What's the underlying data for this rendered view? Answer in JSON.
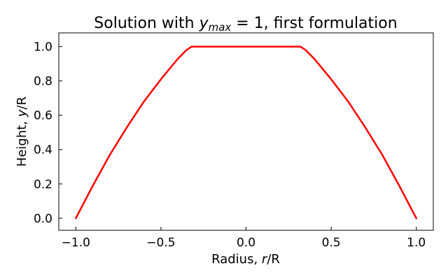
{
  "chart_data": {
    "type": "line",
    "title": {
      "prefix": "Solution with ",
      "math_var": "y",
      "math_sub": "max",
      "math_rest": " = 1",
      "suffix": ", first formulation"
    },
    "xlabel": {
      "text": "Radius, ",
      "var": "r",
      "rest": "/R"
    },
    "ylabel": {
      "text": "Height, ",
      "var": "y",
      "rest": "/R"
    },
    "xlim": [
      -1.1,
      1.1
    ],
    "ylim": [
      -0.07,
      1.08
    ],
    "xticks": [
      {
        "value": -1.0,
        "label": "−1.0"
      },
      {
        "value": -0.5,
        "label": "−0.5"
      },
      {
        "value": 0.0,
        "label": "0.0"
      },
      {
        "value": 0.5,
        "label": "0.5"
      },
      {
        "value": 1.0,
        "label": "1.0"
      }
    ],
    "yticks": [
      {
        "value": 0.0,
        "label": "0.0"
      },
      {
        "value": 0.2,
        "label": "0.2"
      },
      {
        "value": 0.4,
        "label": "0.4"
      },
      {
        "value": 0.6,
        "label": "0.6"
      },
      {
        "value": 0.8,
        "label": "0.8"
      },
      {
        "value": 1.0,
        "label": "1.0"
      }
    ],
    "grid": false,
    "series": [
      {
        "color": "#ff0000",
        "x": [
          -1.0,
          -0.9,
          -0.8,
          -0.7,
          -0.6,
          -0.5,
          -0.4,
          -0.35,
          -0.32,
          0.32,
          0.35,
          0.4,
          0.5,
          0.6,
          0.7,
          0.8,
          0.9,
          1.0
        ],
        "y": [
          0.0,
          0.19,
          0.37,
          0.53,
          0.68,
          0.81,
          0.93,
          0.98,
          1.0,
          1.0,
          0.98,
          0.93,
          0.81,
          0.68,
          0.53,
          0.37,
          0.19,
          0.0
        ]
      }
    ]
  }
}
